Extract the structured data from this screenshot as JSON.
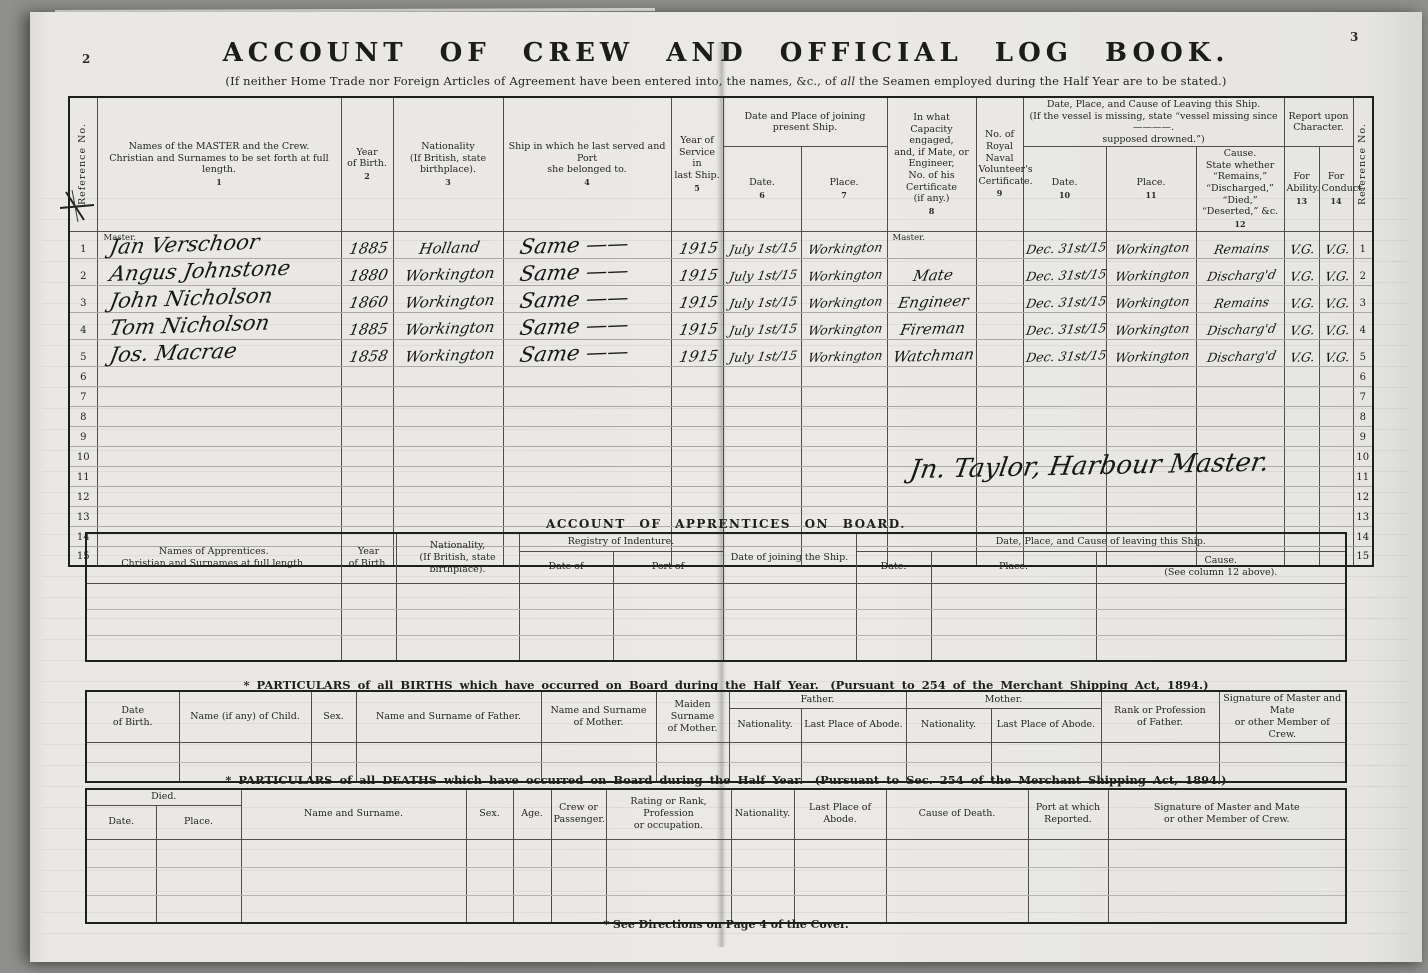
{
  "page": {
    "left_page_number": "2",
    "right_page_number": "3",
    "title": "ACCOUNT OF CREW AND OFFICIAL LOG BOOK.",
    "subtitle_pre": "(If neither Home Trade nor Foreign Articles of Agreement have been entered into, the names, &c., of ",
    "subtitle_em": "all",
    "subtitle_post": " the Seamen employed during the Half Year are to be stated.)",
    "footnote": "* See Directions on Page 4 of the Cover.",
    "signature": "Jn. Taylor, Harbour Master."
  },
  "crew_table": {
    "ref_label": "Reference No.",
    "h_names": {
      "label": "Names of the MASTER and the Crew.\nChristian and Surnames to be set forth at full length.",
      "num": "1"
    },
    "h_birth": {
      "label": "Year\nof Birth.",
      "num": "2"
    },
    "h_nationality": {
      "label": "Nationality\n(If British, state birthplace).",
      "num": "3"
    },
    "h_ship": {
      "label": "Ship in which he last served and Port\nshe belonged to.",
      "num": "4"
    },
    "h_service": {
      "label": "Year of Service\nin\nlast Ship.",
      "num": "5"
    },
    "h_joining_group": "Date and Place of joining present Ship.",
    "h_join_date": {
      "label": "Date.",
      "num": "6"
    },
    "h_join_place": {
      "label": "Place.",
      "num": "7"
    },
    "h_capacity": {
      "label": "In what\nCapacity engaged,\nand, if Mate, or Engineer,\nNo. of his Certificate\n(if any.)",
      "num": "8"
    },
    "h_rnv": {
      "label": "No. of\nRoyal Naval\nVolunteer's\nCertificate.",
      "num": "9"
    },
    "h_leaving_group": "Date, Place, and Cause of Leaving this Ship.\n(If the vessel is missing, state “vessel missing since ————.\nsupposed drowned.”)",
    "h_leave_date": {
      "label": "Date.",
      "num": "10"
    },
    "h_leave_place": {
      "label": "Place.",
      "num": "11"
    },
    "h_cause": {
      "label": "Cause.\nState whether “Remains,”\n“Discharged,” “Died,”\n“Deserted,” &c.",
      "num": "12"
    },
    "h_report_group": "Report upon\nCharacter.",
    "h_ability": {
      "label": "For\nAbility.",
      "num": "13"
    },
    "h_conduct": {
      "label": "For\nConduct.",
      "num": "14"
    },
    "rows": [
      {
        "ref": "1",
        "master_label": "Master.",
        "name": "Jan Verschoor",
        "birth": "1885",
        "nationality": "Holland",
        "ship": "Same ——",
        "service": "1915",
        "join_date": "July 1st/15",
        "join_place": "Workington",
        "capacity": "Master.",
        "capacity_printed": true,
        "rnv": "",
        "leave_date": "Dec. 31st/15",
        "leave_place": "Workington",
        "cause": "Remains",
        "ability": "V.G.",
        "conduct": "V.G."
      },
      {
        "ref": "2",
        "name": "Angus Johnstone",
        "birth": "1880",
        "nationality": "Workington",
        "ship": "Same ——",
        "service": "1915",
        "join_date": "July 1st/15",
        "join_place": "Workington",
        "capacity": "Mate",
        "rnv": "",
        "leave_date": "Dec. 31st/15",
        "leave_place": "Workington",
        "cause": "Discharg'd",
        "ability": "V.G.",
        "conduct": "V.G."
      },
      {
        "ref": "3",
        "name": "John Nicholson",
        "birth": "1860",
        "nationality": "Workington",
        "ship": "Same ——",
        "service": "1915",
        "join_date": "July 1st/15",
        "join_place": "Workington",
        "capacity": "Engineer",
        "rnv": "",
        "leave_date": "Dec. 31st/15",
        "leave_place": "Workington",
        "cause": "Remains",
        "ability": "V.G.",
        "conduct": "V.G."
      },
      {
        "ref": "4",
        "name": "Tom Nicholson",
        "birth": "1885",
        "nationality": "Workington",
        "ship": "Same ——",
        "service": "1915",
        "join_date": "July 1st/15",
        "join_place": "Workington",
        "capacity": "Fireman",
        "rnv": "",
        "leave_date": "Dec. 31st/15",
        "leave_place": "Workington",
        "cause": "Discharg'd",
        "ability": "V.G.",
        "conduct": "V.G."
      },
      {
        "ref": "5",
        "name": "Jos. Macrae",
        "birth": "1858",
        "nationality": "Workington",
        "ship": "Same ——",
        "service": "1915",
        "join_date": "July 1st/15",
        "join_place": "Workington",
        "capacity": "Watchman",
        "rnv": "",
        "leave_date": "Dec. 31st/15",
        "leave_place": "Workington",
        "cause": "Discharg'd",
        "ability": "V.G.",
        "conduct": "V.G."
      },
      {
        "ref": "6"
      },
      {
        "ref": "7"
      },
      {
        "ref": "8"
      },
      {
        "ref": "9"
      },
      {
        "ref": "10"
      },
      {
        "ref": "11"
      },
      {
        "ref": "12"
      },
      {
        "ref": "13"
      },
      {
        "ref": "14"
      },
      {
        "ref": "15"
      }
    ]
  },
  "apprentices_table": {
    "section_title": "ACCOUNT OF APPRENTICES ON BOARD.",
    "h_names": "Names of Apprentices.\nChristian and Surnames at full length.",
    "h_birth": "Year\nof Birth.",
    "h_nationality": "Nationality,\n(If British, state birthplace).",
    "h_registry_group": "Registry of Indenture.",
    "h_date_of": "Date of",
    "h_port_of": "Port of",
    "h_joining": "Date of joining the Ship.",
    "h_leaving_group": "Date, Place, and Cause of leaving this Ship.",
    "h_leave_date": "Date.",
    "h_leave_place": "Place.",
    "h_cause": "Cause.\n(See column 12 above).",
    "blank_rows": 3
  },
  "births_table": {
    "section_title": "* PARTICULARS of all BIRTHS which have occurred on Board during the Half Year. (Pursuant to 254 of the Merchant Shipping Act, 1894.)",
    "h_date": "Date\nof Birth.",
    "h_child": "Name (if any) of Child.",
    "h_sex": "Sex.",
    "h_father_name": "Name and Surname of Father.",
    "h_mother_name": "Name and Surname\nof Mother.",
    "h_maiden": "Maiden Surname\nof Mother.",
    "h_father_group": "Father.",
    "h_mother_group": "Mother.",
    "h_nationality": "Nationality.",
    "h_abode": "Last Place of Abode.",
    "h_rank": "Rank or Profession\nof Father.",
    "h_signature": "Signature of Master and Mate\nor other Member of Crew.",
    "blank_rows": 2
  },
  "deaths_table": {
    "section_title": "* PARTICULARS of all DEATHS which have occurred on Board during the Half Year. (Pursuant to Sec. 254 of the Merchant Shipping Act, 1894.)",
    "h_died_group": "Died.",
    "h_date": "Date.",
    "h_place": "Place.",
    "h_name": "Name and Surname.",
    "h_sex": "Sex.",
    "h_age": "Age.",
    "h_crew": "Crew or\nPassenger.",
    "h_rating": "Rating or Rank, Profession\nor occupation.",
    "h_nationality": "Nationality.",
    "h_abode": "Last Place of Abode.",
    "h_cause": "Cause of Death.",
    "h_port": "Port at which\nReported.",
    "h_signature": "Signature of Master and Mate\nor other Member of Crew.",
    "blank_rows": 3
  }
}
